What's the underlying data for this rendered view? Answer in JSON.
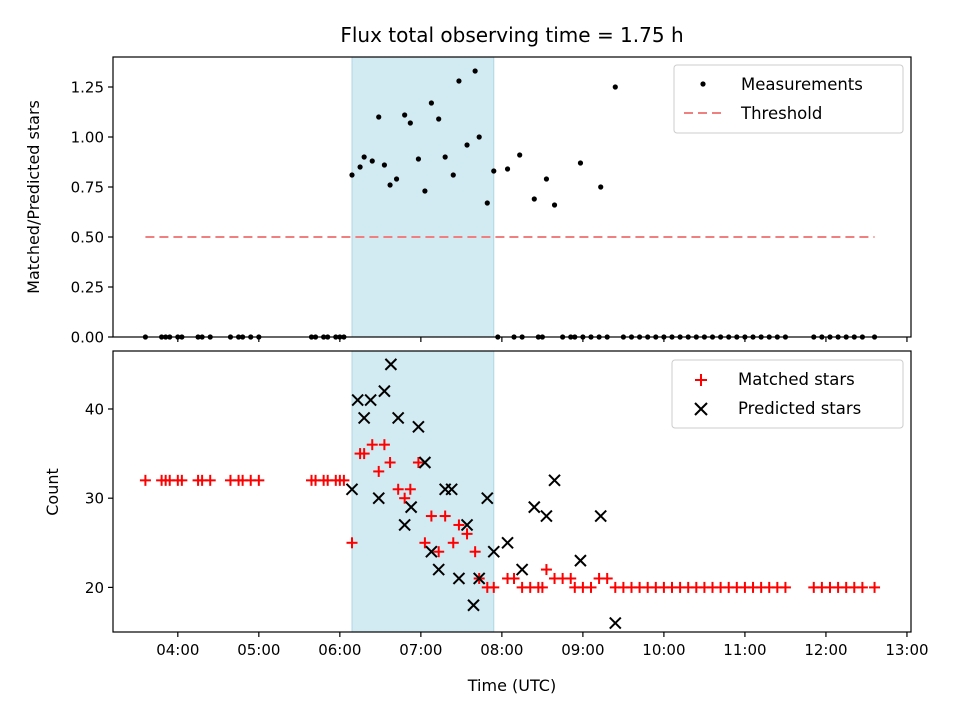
{
  "chart_data": [
    {
      "type": "scatter",
      "title": "Flux total observing time = 1.75 h",
      "ylabel": "Matched/Predicted stars",
      "xlabel": "",
      "x_unit": "hours UTC",
      "xlim": [
        3.2,
        13.05
      ],
      "ylim": [
        0,
        1.4
      ],
      "yticks": [
        0,
        0.25,
        0.5,
        0.75,
        1.0,
        1.25
      ],
      "ytick_labels": [
        "0.00",
        "0.25",
        "0.50",
        "0.75",
        "1.00",
        "1.25"
      ],
      "shaded_interval": [
        6.15,
        7.9
      ],
      "shade_color": "#add8e6",
      "legend_position": "top-right",
      "threshold": {
        "name": "Threshold",
        "y": 0.5,
        "x_range": [
          3.6,
          12.6
        ],
        "color": "#f08080"
      },
      "series": [
        {
          "name": "Measurements",
          "color": "#000000",
          "marker": "dot",
          "points": [
            [
              3.6,
              0
            ],
            [
              3.8,
              0
            ],
            [
              3.85,
              0
            ],
            [
              3.9,
              0
            ],
            [
              4.0,
              0
            ],
            [
              4.05,
              0
            ],
            [
              4.25,
              0
            ],
            [
              4.3,
              0
            ],
            [
              4.4,
              0
            ],
            [
              4.65,
              0
            ],
            [
              4.75,
              0
            ],
            [
              4.8,
              0
            ],
            [
              4.9,
              0
            ],
            [
              5.0,
              0
            ],
            [
              5.65,
              0
            ],
            [
              5.7,
              0
            ],
            [
              5.8,
              0
            ],
            [
              5.85,
              0
            ],
            [
              5.95,
              0
            ],
            [
              6.0,
              0
            ],
            [
              6.05,
              0
            ],
            [
              6.15,
              0.81
            ],
            [
              6.25,
              0.85
            ],
            [
              6.3,
              0.9
            ],
            [
              6.4,
              0.88
            ],
            [
              6.48,
              1.1
            ],
            [
              6.55,
              0.86
            ],
            [
              6.62,
              0.76
            ],
            [
              6.7,
              0.79
            ],
            [
              6.8,
              1.11
            ],
            [
              6.87,
              1.07
            ],
            [
              6.97,
              0.89
            ],
            [
              7.05,
              0.73
            ],
            [
              7.13,
              1.17
            ],
            [
              7.22,
              1.09
            ],
            [
              7.3,
              0.9
            ],
            [
              7.4,
              0.81
            ],
            [
              7.47,
              1.28
            ],
            [
              7.57,
              0.96
            ],
            [
              7.67,
              1.33
            ],
            [
              7.72,
              1.0
            ],
            [
              7.82,
              0.67
            ],
            [
              7.9,
              0.83
            ],
            [
              8.07,
              0.84
            ],
            [
              8.22,
              0.91
            ],
            [
              8.4,
              0.69
            ],
            [
              8.55,
              0.79
            ],
            [
              8.65,
              0.66
            ],
            [
              8.97,
              0.87
            ],
            [
              9.22,
              0.75
            ],
            [
              9.4,
              1.25
            ],
            [
              7.95,
              0
            ],
            [
              8.15,
              0
            ],
            [
              8.25,
              0
            ],
            [
              8.45,
              0
            ],
            [
              8.5,
              0
            ],
            [
              8.75,
              0
            ],
            [
              8.85,
              0
            ],
            [
              8.9,
              0
            ],
            [
              9.0,
              0
            ],
            [
              9.1,
              0
            ],
            [
              9.2,
              0
            ],
            [
              9.3,
              0
            ],
            [
              9.5,
              0
            ],
            [
              9.6,
              0
            ],
            [
              9.7,
              0
            ],
            [
              9.8,
              0
            ],
            [
              9.9,
              0
            ],
            [
              10.0,
              0
            ],
            [
              10.1,
              0
            ],
            [
              10.2,
              0
            ],
            [
              10.3,
              0
            ],
            [
              10.4,
              0
            ],
            [
              10.5,
              0
            ],
            [
              10.6,
              0
            ],
            [
              10.7,
              0
            ],
            [
              10.8,
              0
            ],
            [
              10.9,
              0
            ],
            [
              11.0,
              0
            ],
            [
              11.1,
              0
            ],
            [
              11.2,
              0
            ],
            [
              11.3,
              0
            ],
            [
              11.4,
              0
            ],
            [
              11.5,
              0
            ],
            [
              11.85,
              0
            ],
            [
              11.95,
              0
            ],
            [
              12.05,
              0
            ],
            [
              12.15,
              0
            ],
            [
              12.25,
              0
            ],
            [
              12.35,
              0
            ],
            [
              12.45,
              0
            ],
            [
              12.6,
              0
            ]
          ]
        }
      ],
      "xticks": [
        4,
        5,
        6,
        7,
        8,
        9,
        10,
        11,
        12,
        13
      ]
    },
    {
      "type": "scatter",
      "title": "",
      "ylabel": "Count",
      "xlabel": "Time (UTC)",
      "x_unit": "hours UTC",
      "xlim": [
        3.2,
        13.05
      ],
      "ylim": [
        15,
        46.5
      ],
      "yticks": [
        20,
        30,
        40
      ],
      "ytick_labels": [
        "20",
        "30",
        "40"
      ],
      "xticks": [
        4,
        5,
        6,
        7,
        8,
        9,
        10,
        11,
        12,
        13
      ],
      "xtick_labels": [
        "04:00",
        "05:00",
        "06:00",
        "07:00",
        "08:00",
        "09:00",
        "10:00",
        "11:00",
        "12:00",
        "13:00"
      ],
      "shaded_interval": [
        6.15,
        7.9
      ],
      "shade_color": "#add8e6",
      "legend_position": "top-right",
      "series": [
        {
          "name": "Matched stars",
          "color": "#ff0000",
          "marker": "plus",
          "points": [
            [
              3.6,
              32
            ],
            [
              3.8,
              32
            ],
            [
              3.85,
              32
            ],
            [
              3.9,
              32
            ],
            [
              4.0,
              32
            ],
            [
              4.05,
              32
            ],
            [
              4.25,
              32
            ],
            [
              4.3,
              32
            ],
            [
              4.4,
              32
            ],
            [
              4.65,
              32
            ],
            [
              4.75,
              32
            ],
            [
              4.8,
              32
            ],
            [
              4.9,
              32
            ],
            [
              5.0,
              32
            ],
            [
              5.65,
              32
            ],
            [
              5.7,
              32
            ],
            [
              5.8,
              32
            ],
            [
              5.85,
              32
            ],
            [
              5.95,
              32
            ],
            [
              6.0,
              32
            ],
            [
              6.05,
              32
            ],
            [
              6.15,
              25
            ],
            [
              6.25,
              35
            ],
            [
              6.3,
              35
            ],
            [
              6.4,
              36
            ],
            [
              6.48,
              33
            ],
            [
              6.55,
              36
            ],
            [
              6.62,
              34
            ],
            [
              6.72,
              31
            ],
            [
              6.8,
              30
            ],
            [
              6.87,
              31
            ],
            [
              6.97,
              34
            ],
            [
              7.05,
              25
            ],
            [
              7.13,
              28
            ],
            [
              7.22,
              24
            ],
            [
              7.3,
              28
            ],
            [
              7.4,
              25
            ],
            [
              7.47,
              27
            ],
            [
              7.57,
              26
            ],
            [
              7.67,
              24
            ],
            [
              7.72,
              21
            ],
            [
              7.82,
              20
            ],
            [
              7.9,
              20
            ],
            [
              8.07,
              21
            ],
            [
              8.15,
              21
            ],
            [
              8.25,
              20
            ],
            [
              8.35,
              20
            ],
            [
              8.45,
              20
            ],
            [
              8.5,
              20
            ],
            [
              8.55,
              22
            ],
            [
              8.65,
              21
            ],
            [
              8.75,
              21
            ],
            [
              8.85,
              21
            ],
            [
              8.9,
              20
            ],
            [
              9.0,
              20
            ],
            [
              9.1,
              20
            ],
            [
              9.2,
              21
            ],
            [
              9.3,
              21
            ],
            [
              9.4,
              20
            ],
            [
              9.5,
              20
            ],
            [
              9.6,
              20
            ],
            [
              9.7,
              20
            ],
            [
              9.8,
              20
            ],
            [
              9.9,
              20
            ],
            [
              10.0,
              20
            ],
            [
              10.1,
              20
            ],
            [
              10.2,
              20
            ],
            [
              10.3,
              20
            ],
            [
              10.4,
              20
            ],
            [
              10.5,
              20
            ],
            [
              10.6,
              20
            ],
            [
              10.7,
              20
            ],
            [
              10.8,
              20
            ],
            [
              10.9,
              20
            ],
            [
              11.0,
              20
            ],
            [
              11.1,
              20
            ],
            [
              11.2,
              20
            ],
            [
              11.3,
              20
            ],
            [
              11.4,
              20
            ],
            [
              11.5,
              20
            ],
            [
              11.85,
              20
            ],
            [
              11.95,
              20
            ],
            [
              12.05,
              20
            ],
            [
              12.15,
              20
            ],
            [
              12.25,
              20
            ],
            [
              12.35,
              20
            ],
            [
              12.45,
              20
            ],
            [
              12.6,
              20
            ]
          ]
        },
        {
          "name": "Predicted stars",
          "color": "#000000",
          "marker": "x",
          "points": [
            [
              6.15,
              31
            ],
            [
              6.22,
              41
            ],
            [
              6.3,
              39
            ],
            [
              6.38,
              41
            ],
            [
              6.48,
              30
            ],
            [
              6.55,
              42
            ],
            [
              6.63,
              45
            ],
            [
              6.72,
              39
            ],
            [
              6.8,
              27
            ],
            [
              6.88,
              29
            ],
            [
              6.97,
              38
            ],
            [
              7.05,
              34
            ],
            [
              7.13,
              24
            ],
            [
              7.22,
              22
            ],
            [
              7.3,
              31
            ],
            [
              7.38,
              31
            ],
            [
              7.47,
              21
            ],
            [
              7.57,
              27
            ],
            [
              7.65,
              18
            ],
            [
              7.72,
              21
            ],
            [
              7.82,
              30
            ],
            [
              7.9,
              24
            ],
            [
              8.07,
              25
            ],
            [
              8.25,
              22
            ],
            [
              8.4,
              29
            ],
            [
              8.55,
              28
            ],
            [
              8.65,
              32
            ],
            [
              8.97,
              23
            ],
            [
              9.22,
              28
            ],
            [
              9.4,
              16
            ]
          ]
        }
      ]
    }
  ]
}
